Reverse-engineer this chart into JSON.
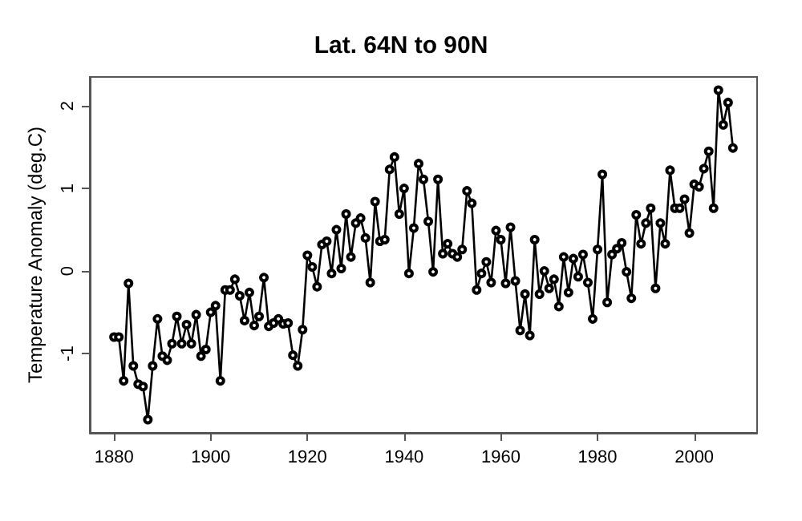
{
  "chart_data": {
    "type": "line",
    "title": "Lat. 64N to 90N",
    "ylabel": "Temperature Anomaly (deg.C)",
    "x": [
      1880,
      1881,
      1882,
      1883,
      1884,
      1885,
      1886,
      1887,
      1888,
      1889,
      1890,
      1891,
      1892,
      1893,
      1894,
      1895,
      1896,
      1897,
      1898,
      1899,
      1900,
      1901,
      1902,
      1903,
      1904,
      1905,
      1906,
      1907,
      1908,
      1909,
      1910,
      1911,
      1912,
      1913,
      1914,
      1915,
      1916,
      1917,
      1918,
      1919,
      1920,
      1921,
      1922,
      1923,
      1924,
      1925,
      1926,
      1927,
      1928,
      1929,
      1930,
      1931,
      1932,
      1933,
      1934,
      1935,
      1936,
      1937,
      1938,
      1939,
      1940,
      1941,
      1942,
      1943,
      1944,
      1945,
      1946,
      1947,
      1948,
      1949,
      1950,
      1951,
      1952,
      1953,
      1954,
      1955,
      1956,
      1957,
      1958,
      1959,
      1960,
      1961,
      1962,
      1963,
      1964,
      1965,
      1966,
      1967,
      1968,
      1969,
      1970,
      1971,
      1972,
      1973,
      1974,
      1975,
      1976,
      1977,
      1978,
      1979,
      1980,
      1981,
      1982,
      1983,
      1984,
      1985,
      1986,
      1987,
      1988,
      1989,
      1990,
      1991,
      1992,
      1993,
      1994,
      1995,
      1996,
      1997,
      1998,
      1999,
      2000,
      2001,
      2002,
      2003,
      2004,
      2005,
      2006,
      2007,
      2008
    ],
    "series": [
      {
        "color": "#000000",
        "values": [
          -0.8,
          -0.8,
          -1.33,
          -0.15,
          -1.15,
          -1.37,
          -1.4,
          -1.8,
          -1.15,
          -0.58,
          -1.03,
          -1.08,
          -0.88,
          -0.55,
          -0.88,
          -0.65,
          -0.88,
          -0.53,
          -1.03,
          -0.95,
          -0.5,
          -0.42,
          -1.33,
          -0.23,
          -0.23,
          -0.1,
          -0.3,
          -0.6,
          -0.26,
          -0.66,
          -0.55,
          -0.08,
          -0.67,
          -0.63,
          -0.58,
          -0.64,
          -0.63,
          -1.02,
          -1.15,
          -0.71,
          0.19,
          0.05,
          -0.19,
          0.32,
          0.36,
          -0.03,
          0.5,
          0.03,
          0.69,
          0.17,
          0.58,
          0.64,
          0.4,
          -0.14,
          0.84,
          0.36,
          0.38,
          1.23,
          1.38,
          0.69,
          1.0,
          -0.03,
          0.52,
          1.3,
          1.11,
          0.6,
          -0.01,
          1.11,
          0.21,
          0.33,
          0.21,
          0.17,
          0.26,
          0.97,
          0.82,
          -0.23,
          -0.03,
          0.11,
          -0.14,
          0.49,
          0.38,
          -0.15,
          0.53,
          -0.12,
          -0.72,
          -0.28,
          -0.78,
          0.38,
          -0.28,
          0.0,
          -0.21,
          -0.1,
          -0.43,
          0.17,
          -0.26,
          0.15,
          -0.07,
          0.2,
          -0.14,
          -0.58,
          0.26,
          1.17,
          -0.38,
          0.2,
          0.27,
          0.34,
          -0.01,
          -0.33,
          0.68,
          0.33,
          0.58,
          0.76,
          -0.21,
          0.58,
          0.33,
          1.22,
          0.76,
          0.76,
          0.87,
          0.46,
          1.05,
          1.02,
          1.24,
          1.45,
          0.76,
          2.19,
          1.77,
          2.04,
          1.49
        ]
      }
    ],
    "xlim": [
      1875,
      2013
    ],
    "ylim": [
      -1.96,
      2.35
    ],
    "xticks": [
      1880,
      1900,
      1920,
      1940,
      1960,
      1980,
      2000
    ],
    "yticks": [
      -1,
      0,
      1,
      2
    ],
    "grid": false,
    "marker": "circle",
    "line_style": "solid"
  }
}
